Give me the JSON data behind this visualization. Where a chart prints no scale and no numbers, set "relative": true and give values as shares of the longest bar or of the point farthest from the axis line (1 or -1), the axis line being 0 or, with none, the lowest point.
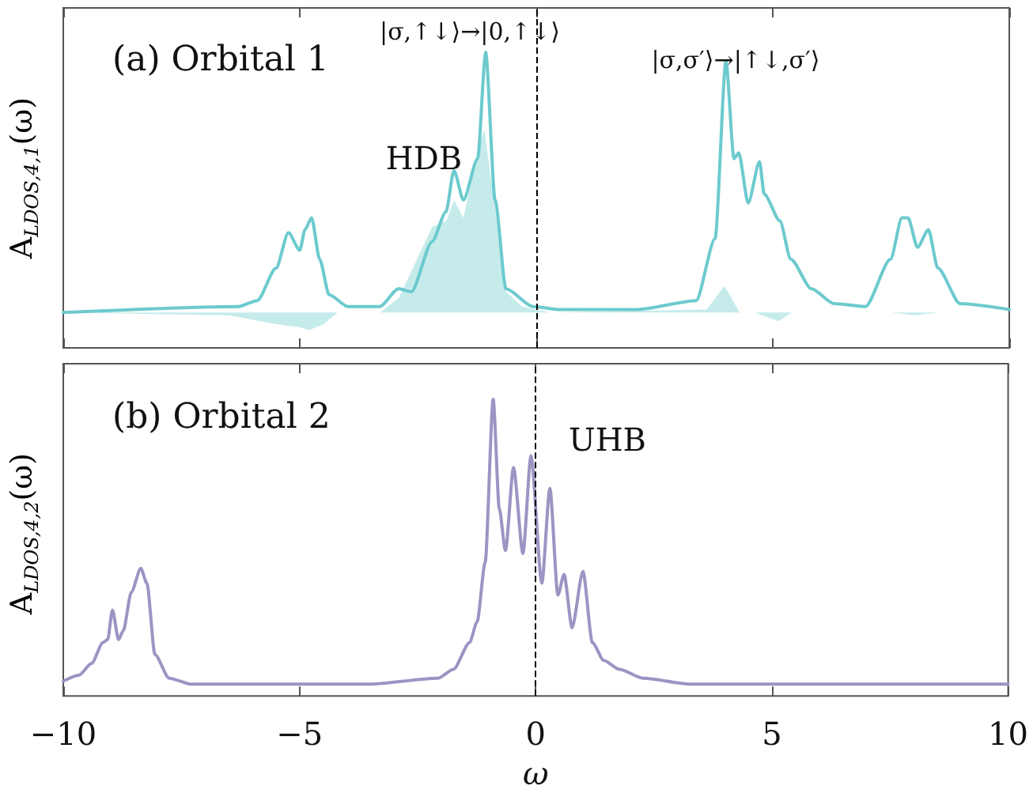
{
  "chart_data": [
    {
      "type": "line",
      "title": "(a) Orbital 1",
      "ylabel": "A$_{LDOS,4,1}$(ω)",
      "relative": true,
      "xlim": [
        -10,
        10
      ],
      "xticks": [
        -10,
        -5,
        0,
        5,
        10
      ],
      "tick_labels": false,
      "marker": "none",
      "annotations": [
        "HDB",
        "|σ,↑↓⟩→|0,↑↓⟩",
        "|σ,σ′⟩→|↑↓,σ′⟩"
      ],
      "ref_lines": [
        {
          "axis": "x",
          "value": 0,
          "line_style": "dashed",
          "color": "#000000"
        }
      ],
      "series": [
        {
          "type": "area",
          "color": "#c6ebeb",
          "x": [
            -10,
            -6.5,
            -5.5,
            -5.0,
            -4.8,
            -4.5,
            -4.2,
            -3.3,
            -2.9,
            -2.2,
            -1.9,
            -1.74,
            -1.54,
            -1.24,
            -1.1,
            -0.87,
            -0.64,
            -0.3,
            0.3,
            3.6,
            3.98,
            4.3,
            4.62,
            5.12,
            5.4,
            7.5,
            8.0,
            8.5,
            10
          ],
          "values": [
            0.12,
            0.11,
            0.08,
            0.07,
            0.06,
            0.08,
            0.12,
            0.12,
            0.17,
            0.41,
            0.43,
            0.5,
            0.44,
            0.66,
            0.74,
            0.47,
            0.19,
            0.14,
            0.12,
            0.13,
            0.21,
            0.12,
            0.12,
            0.09,
            0.12,
            0.12,
            0.11,
            0.12,
            0.12
          ]
        },
        {
          "type": "line",
          "color": "#6ccace",
          "x": [
            -10,
            -6.3,
            -5.9,
            -5.5,
            -5.24,
            -5.0,
            -4.89,
            -4.75,
            -4.58,
            -4.38,
            -3.98,
            -3.31,
            -2.91,
            -2.64,
            -2.2,
            -1.91,
            -1.74,
            -1.54,
            -1.24,
            -1.07,
            -0.87,
            -0.64,
            -0.07,
            0.47,
            2.14,
            3.38,
            3.78,
            4.01,
            4.18,
            4.28,
            4.48,
            4.72,
            4.82,
            5.15,
            5.38,
            5.82,
            6.29,
            6.96,
            7.49,
            7.73,
            7.86,
            8.06,
            8.29,
            8.49,
            8.96,
            10
          ],
          "values": [
            0.12,
            0.14,
            0.16,
            0.27,
            0.39,
            0.33,
            0.4,
            0.44,
            0.3,
            0.18,
            0.14,
            0.14,
            0.2,
            0.19,
            0.36,
            0.46,
            0.6,
            0.5,
            0.64,
            1.0,
            0.5,
            0.2,
            0.14,
            0.13,
            0.13,
            0.16,
            0.37,
            0.97,
            0.64,
            0.66,
            0.49,
            0.63,
            0.52,
            0.43,
            0.3,
            0.2,
            0.15,
            0.14,
            0.3,
            0.44,
            0.44,
            0.34,
            0.4,
            0.27,
            0.15,
            0.13
          ]
        }
      ]
    },
    {
      "type": "line",
      "title": "(b) Orbital 2",
      "ylabel": "A$_{LDOS,4,2}$(ω)",
      "xlabel": "ω",
      "relative": true,
      "xlim": [
        -10,
        10
      ],
      "xticks": [
        -10,
        -5,
        0,
        5,
        10
      ],
      "tick_labels": "x",
      "marker": "none",
      "annotations": [
        "UHB"
      ],
      "ref_lines": [
        {
          "axis": "x",
          "value": 0,
          "line_style": "dashed",
          "color": "#000000"
        }
      ],
      "series": [
        {
          "type": "line",
          "color": "#9b95c4",
          "x": [
            -10,
            -9.67,
            -9.4,
            -9.16,
            -9.06,
            -8.96,
            -8.83,
            -8.73,
            -8.56,
            -8.36,
            -8.23,
            -8.06,
            -7.76,
            -7.3,
            -3.5,
            -2.07,
            -1.74,
            -1.4,
            -1.24,
            -1.07,
            -0.9,
            -0.77,
            -0.64,
            -0.47,
            -0.27,
            -0.1,
            0.13,
            0.3,
            0.47,
            0.6,
            0.77,
            1.0,
            1.2,
            1.44,
            1.77,
            2.27,
            3.28,
            10
          ],
          "values": [
            0.05,
            0.07,
            0.11,
            0.18,
            0.19,
            0.29,
            0.19,
            0.22,
            0.35,
            0.43,
            0.38,
            0.14,
            0.06,
            0.04,
            0.04,
            0.06,
            0.09,
            0.18,
            0.25,
            0.45,
            1.0,
            0.63,
            0.49,
            0.77,
            0.48,
            0.81,
            0.38,
            0.7,
            0.34,
            0.41,
            0.23,
            0.42,
            0.18,
            0.12,
            0.09,
            0.06,
            0.04,
            0.04
          ]
        }
      ]
    }
  ]
}
